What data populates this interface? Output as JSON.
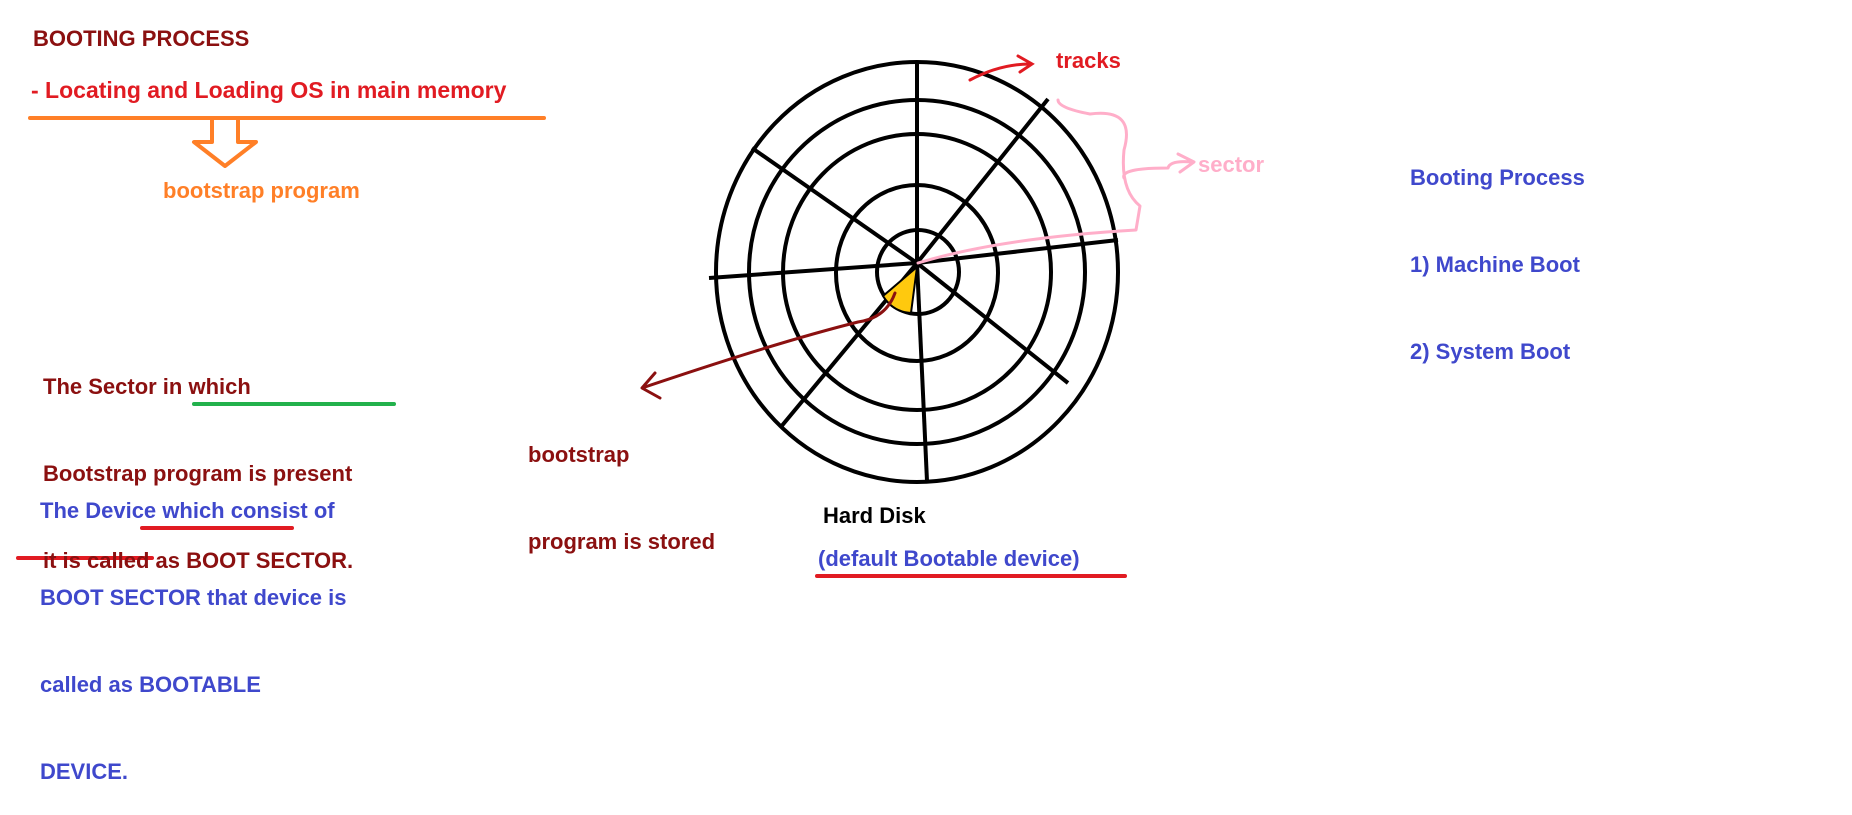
{
  "header": {
    "title": "BOOTING PROCESS",
    "subtitle": "- Locating and Loading OS in main memory",
    "bootstrap_label": "bootstrap program"
  },
  "notes": {
    "boot_sector": {
      "line1": "The Sector in which",
      "line2": "Bootstrap program is present",
      "line3_prefix": "it is called as ",
      "line3_highlight": "BOOT SECTOR."
    },
    "bootable_device": {
      "line1": "The Device which consist of",
      "line2": "BOOT SECTOR that device is",
      "line3_prefix": "called as ",
      "line3_highlight": "BOOTABLE",
      "line4": "DEVICE."
    }
  },
  "disk": {
    "tracks_label": "tracks",
    "sector_label": "sector",
    "stored_line1": "bootstrap",
    "stored_line2": "program is stored",
    "caption": "Hard Disk",
    "caption_note": "(default Bootable device)"
  },
  "side": {
    "title": "Booting Process",
    "items": [
      "1) Machine Boot",
      "2) System Boot"
    ]
  },
  "colors": {
    "dark_red": "#8b1010",
    "red": "#e11b22",
    "orange": "#ff7f27",
    "blue": "#3f48cc",
    "pink": "#ffaec9",
    "green": "#22b14c",
    "sector_fill": "#ffc90e"
  },
  "icons": [
    "down-arrow-icon"
  ]
}
